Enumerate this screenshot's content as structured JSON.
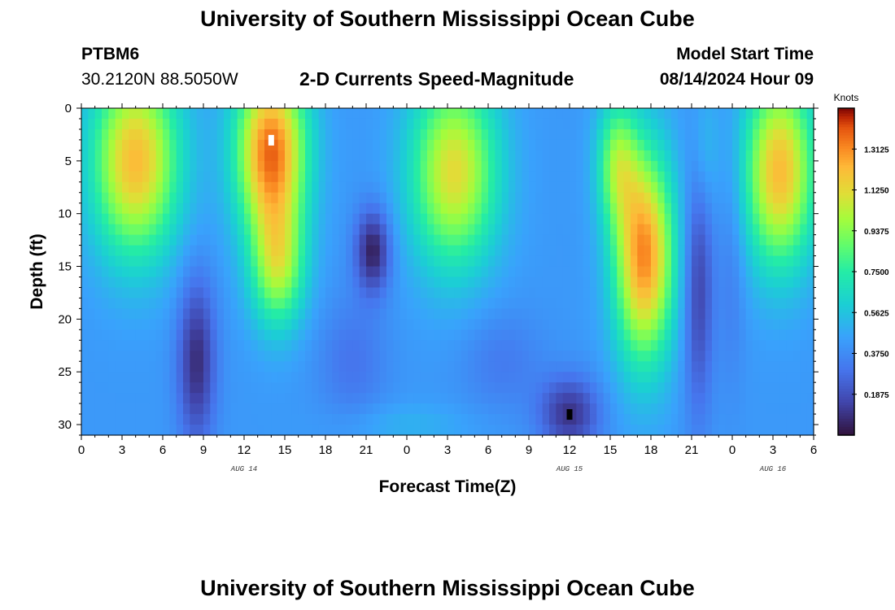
{
  "header": {
    "title": "University of Southern Mississippi Ocean Cube",
    "station_id": "PTBM6",
    "coordinates": "30.2120N  88.5050W",
    "product": "2-D Currents Speed-Magnitude",
    "model_start_label": "Model Start Time",
    "model_start": "08/14/2024 Hour 09"
  },
  "footer": {
    "title": "University of Southern Mississippi Ocean Cube"
  },
  "chart_data": {
    "type": "heatmap",
    "title": "2-D Currents Speed-Magnitude",
    "xlabel": "Forecast Time(Z)",
    "ylabel": "Depth (ft)",
    "x_range_hours": [
      0,
      54
    ],
    "y_range_ft": [
      0,
      31
    ],
    "x_ticks": [
      "0",
      "3",
      "6",
      "9",
      "12",
      "15",
      "18",
      "21",
      "0",
      "3",
      "6",
      "9",
      "12",
      "15",
      "18",
      "21",
      "0",
      "3",
      "6"
    ],
    "y_ticks": [
      "0",
      "5",
      "10",
      "15",
      "20",
      "25",
      "30"
    ],
    "date_labels": [
      {
        "hour": 12,
        "text": "AUG 14"
      },
      {
        "hour": 36,
        "text": "AUG 15"
      },
      {
        "hour": 51,
        "text": "AUG 16"
      }
    ],
    "colorbar": {
      "unit": "Knots",
      "min": 0.0,
      "max": 1.5,
      "ticks": [
        "0.1875",
        "0.3750",
        "0.5625",
        "0.7500",
        "0.9375",
        "1.1250",
        "1.3125"
      ]
    },
    "speed_maxima": [
      {
        "hour": 4,
        "depth_ft": 7,
        "knots": 1.2
      },
      {
        "hour": 14,
        "depth_ft": 4,
        "knots": 1.5
      },
      {
        "hour": 27,
        "depth_ft": 8,
        "knots": 1.15
      },
      {
        "hour": 41.5,
        "depth_ft": 15,
        "knots": 1.3
      },
      {
        "hour": 51.5,
        "depth_ft": 6,
        "knots": 1.2
      }
    ],
    "speed_minima": [
      {
        "hour": 8.5,
        "depth_ft": 26,
        "knots": 0.1
      },
      {
        "hour": 21.5,
        "depth_ft": 13,
        "knots": 0.1
      },
      {
        "hour": 36,
        "depth_ft": 29,
        "knots": 0.05
      },
      {
        "hour": 45.5,
        "depth_ft": 18,
        "knots": 0.15
      }
    ],
    "markers": [
      {
        "hour": 14,
        "depth_ft": 3,
        "color": "#ffffff"
      },
      {
        "hour": 36,
        "depth_ft": 29,
        "color": "#000000"
      }
    ]
  }
}
